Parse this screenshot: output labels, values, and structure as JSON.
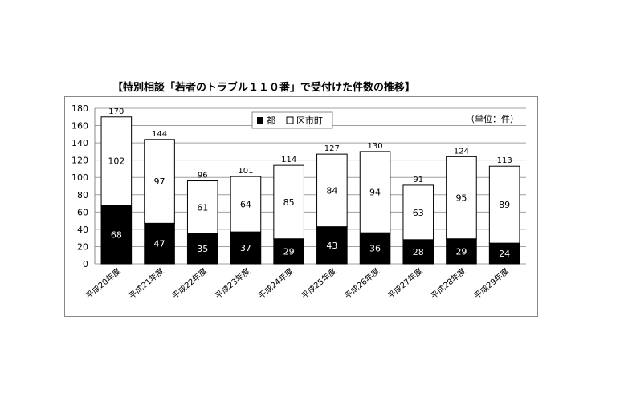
{
  "chart_data": {
    "type": "bar",
    "stacked": true,
    "title": "【特別相談「若者のトラブル１１０番」で受付けた件数の推移】",
    "unit_note": "（単位：件）",
    "categories": [
      "平成20年度",
      "平成21年度",
      "平成22年度",
      "平成23年度",
      "平成24年度",
      "平成25年度",
      "平成26年度",
      "平成27年度",
      "平成28年度",
      "平成29年度"
    ],
    "series": [
      {
        "name": "都",
        "values": [
          68,
          47,
          35,
          37,
          29,
          43,
          36,
          28,
          29,
          24
        ]
      },
      {
        "name": "区市町",
        "values": [
          102,
          97,
          61,
          64,
          85,
          84,
          94,
          63,
          95,
          89
        ]
      }
    ],
    "totals": [
      170,
      144,
      96,
      101,
      114,
      127,
      130,
      91,
      124,
      113
    ],
    "yticks": [
      0,
      20,
      40,
      60,
      80,
      100,
      120,
      140,
      160,
      180
    ],
    "ylim": [
      0,
      180
    ],
    "grid": true,
    "legend_position": "top-center",
    "colors": {
      "tokyo": "#000000",
      "municipal": "#ffffff",
      "gridline": "#a0a0a0"
    }
  }
}
